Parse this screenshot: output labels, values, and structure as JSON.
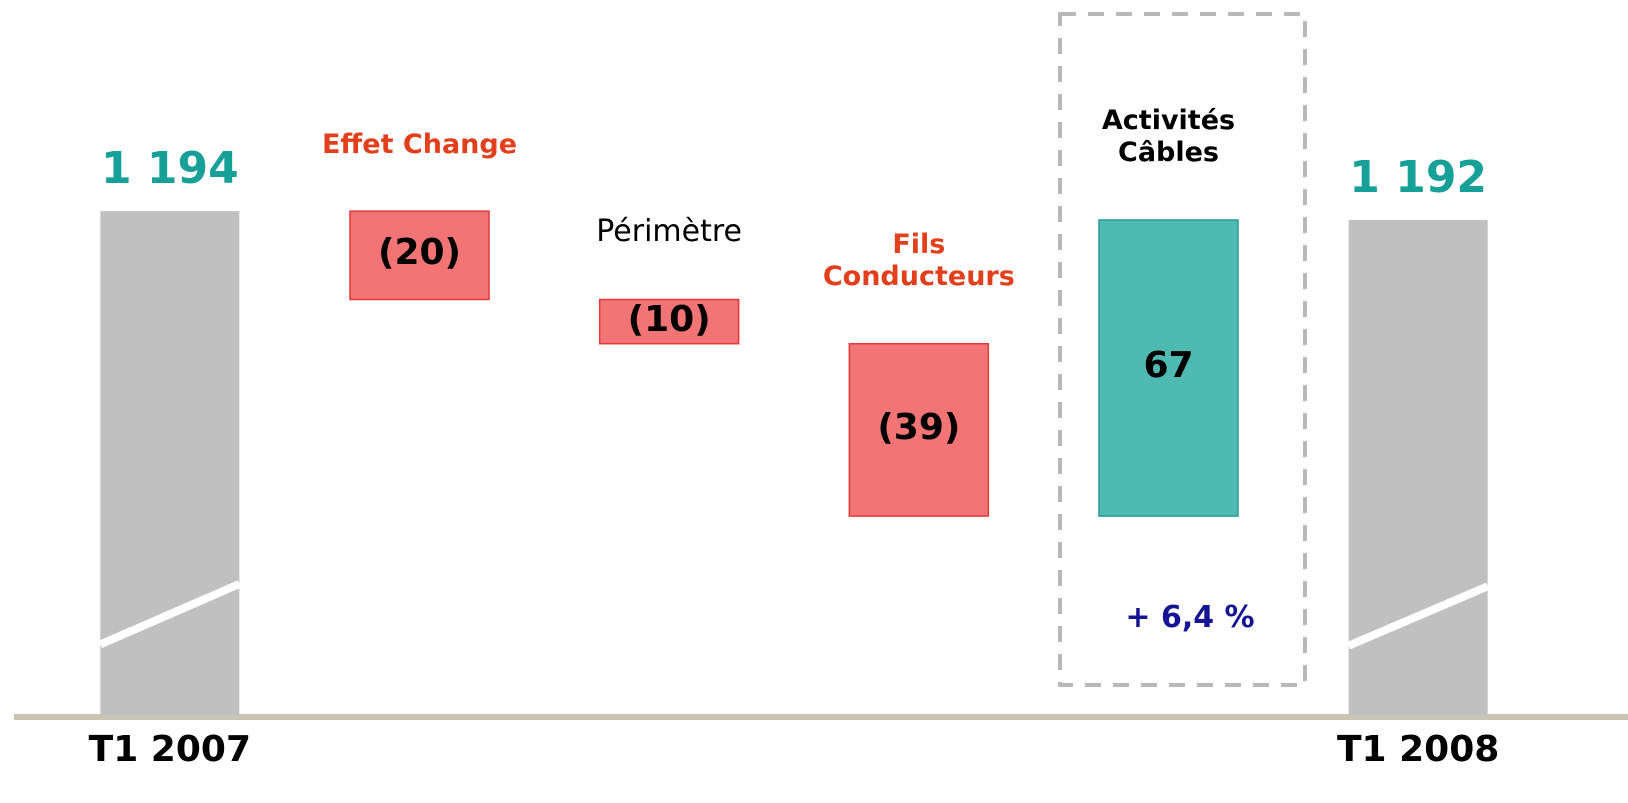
{
  "chart_data": {
    "type": "waterfall",
    "categories": [
      "T1 2007",
      "Effet Change",
      "Périmètre",
      "Fils Conducteurs",
      "Activités Câbles",
      "T1 2008"
    ],
    "values": [
      1194,
      -20,
      -10,
      -39,
      67,
      1192
    ],
    "value_labels": [
      "1 194",
      "(20)",
      "(10)",
      "(39)",
      "67",
      "1 192"
    ],
    "is_total": [
      true,
      false,
      false,
      false,
      false,
      true
    ],
    "colors": [
      "#c0c0c0",
      "#f27474",
      "#f27474",
      "#f27474",
      "#4fbab2",
      "#c0c0c0"
    ],
    "label_colors": [
      "#000000",
      "#e2401c",
      "#000000",
      "#e2401c",
      "#000000",
      "#000000"
    ],
    "label_bold": [
      true,
      true,
      false,
      true,
      true,
      true
    ],
    "total_label_color": "#17a097",
    "ylim": [
      1080,
      1205
    ],
    "axis_break": true,
    "annotation": "+ 6,4 %"
  }
}
